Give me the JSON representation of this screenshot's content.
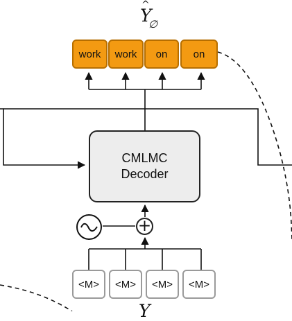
{
  "output": {
    "label": "Y",
    "hat": "^",
    "subscript": "∅",
    "tokens": [
      "work",
      "work",
      "on",
      "on"
    ]
  },
  "decoder": {
    "line1": "CMLMC",
    "line2": "Decoder"
  },
  "combiner": {
    "plus_symbol": "+",
    "noise_icon": "sine-wave-icon"
  },
  "input": {
    "label": "Y",
    "tokens": [
      "<M>",
      "<M>",
      "<M>",
      "<M>"
    ]
  },
  "colors": {
    "output_token_fill": "#f39a12",
    "output_token_border": "#b66e00",
    "decoder_fill": "#ededed",
    "input_token_border": "#9a9a9a"
  }
}
